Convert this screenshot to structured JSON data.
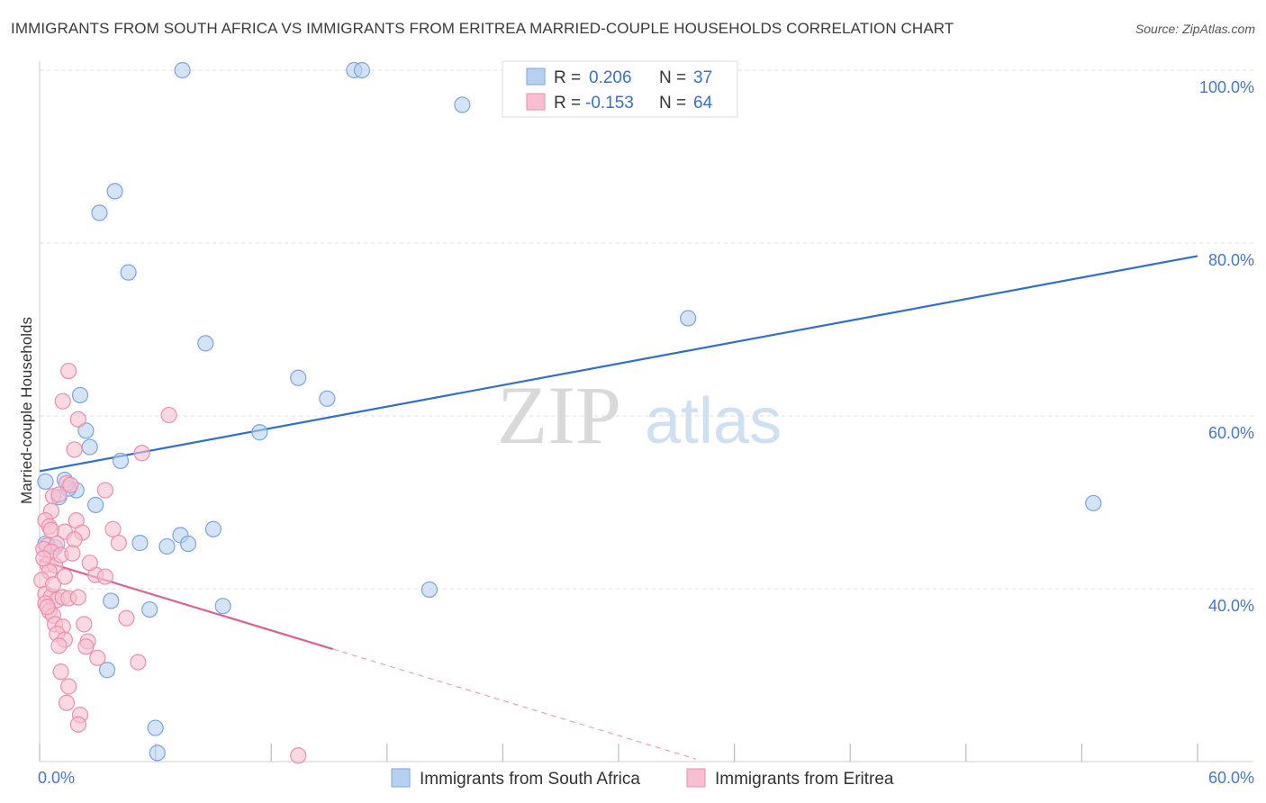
{
  "title": "IMMIGRANTS FROM SOUTH AFRICA VS IMMIGRANTS FROM ERITREA MARRIED-COUPLE HOUSEHOLDS CORRELATION CHART",
  "source": "Source: ZipAtlas.com",
  "watermark": {
    "zip": "ZIP",
    "atlas": "atlas"
  },
  "colors": {
    "blue_fill": "#b7d0f0",
    "blue_stroke": "#7aa5dc",
    "blue_line": "#2f6fce",
    "pink_fill": "#f7bfd1",
    "pink_stroke": "#ea8fae",
    "pink_line": "#e0608d",
    "tick_text": "#4477cc",
    "grid": "#dddddd"
  },
  "legend": {
    "r_label": "R =",
    "n_label": "N =",
    "series": [
      {
        "r": "0.206",
        "n": "37"
      },
      {
        "r": "-0.153",
        "n": "64"
      }
    ]
  },
  "chart_data": {
    "type": "scatter",
    "xlabel": "",
    "ylabel": "Married-couple Households",
    "xlim": [
      0,
      60
    ],
    "ylim": [
      20,
      100
    ],
    "x_tick_labels": [
      "0.0%",
      "60.0%"
    ],
    "y_ticks": [
      40,
      60,
      80,
      100
    ],
    "y_tick_labels": [
      "40.0%",
      "60.0%",
      "80.0%",
      "100.0%"
    ],
    "grid": true,
    "legend_position": "top-center",
    "series": [
      {
        "name": "Immigrants from South Africa",
        "color_key": "blue",
        "trend": {
          "x0": 0,
          "y0": 53.6,
          "x1": 60,
          "y1": 78.5,
          "solid_until": 60
        },
        "points": [
          [
            7.4,
            100
          ],
          [
            16.3,
            100
          ],
          [
            16.7,
            100
          ],
          [
            21.9,
            96
          ],
          [
            3.9,
            86
          ],
          [
            3.1,
            83.5
          ],
          [
            4.6,
            76.6
          ],
          [
            8.6,
            68.4
          ],
          [
            33.6,
            71.3
          ],
          [
            13.4,
            64.4
          ],
          [
            14.9,
            62
          ],
          [
            2.1,
            62.4
          ],
          [
            2.4,
            58.3
          ],
          [
            11.4,
            58.1
          ],
          [
            2.6,
            56.4
          ],
          [
            4.2,
            54.8
          ],
          [
            0.3,
            52.4
          ],
          [
            1.3,
            52.6
          ],
          [
            1.9,
            51.4
          ],
          [
            1.0,
            50.6
          ],
          [
            1.5,
            51.6
          ],
          [
            2.9,
            49.7
          ],
          [
            54.6,
            49.9
          ],
          [
            9.0,
            46.9
          ],
          [
            7.3,
            46.2
          ],
          [
            5.2,
            45.3
          ],
          [
            6.6,
            44.9
          ],
          [
            7.7,
            45.2
          ],
          [
            0.3,
            45.2
          ],
          [
            0.8,
            44.8
          ],
          [
            20.2,
            39.9
          ],
          [
            3.7,
            38.6
          ],
          [
            9.5,
            38.0
          ],
          [
            5.7,
            37.6
          ],
          [
            3.5,
            30.6
          ],
          [
            6.0,
            23.9
          ],
          [
            6.1,
            21.0
          ]
        ]
      },
      {
        "name": "Immigrants from Eritrea",
        "color_key": "pink",
        "trend": {
          "x0": 0,
          "y0": 43.3,
          "x1": 34,
          "y1": 20.3,
          "solid_until": 15.2
        },
        "points": [
          [
            1.5,
            65.2
          ],
          [
            1.2,
            61.7
          ],
          [
            2.0,
            59.6
          ],
          [
            6.7,
            60.1
          ],
          [
            1.8,
            56.1
          ],
          [
            5.3,
            55.7
          ],
          [
            1.4,
            52.2
          ],
          [
            1.6,
            52.0
          ],
          [
            3.4,
            51.4
          ],
          [
            0.7,
            50.7
          ],
          [
            1.0,
            50.9
          ],
          [
            0.6,
            49.0
          ],
          [
            0.3,
            47.9
          ],
          [
            0.5,
            47.2
          ],
          [
            1.9,
            47.9
          ],
          [
            3.8,
            46.9
          ],
          [
            1.3,
            46.6
          ],
          [
            2.2,
            46.5
          ],
          [
            1.8,
            45.7
          ],
          [
            4.1,
            45.3
          ],
          [
            0.4,
            45.0
          ],
          [
            0.9,
            45.2
          ],
          [
            0.2,
            44.6
          ],
          [
            0.6,
            44.3
          ],
          [
            0.4,
            42.8
          ],
          [
            0.8,
            42.7
          ],
          [
            0.5,
            42.0
          ],
          [
            1.3,
            41.4
          ],
          [
            2.9,
            41.6
          ],
          [
            3.4,
            41.4
          ],
          [
            0.1,
            41.0
          ],
          [
            0.3,
            39.4
          ],
          [
            0.6,
            39.1
          ],
          [
            0.9,
            38.7
          ],
          [
            1.2,
            39.0
          ],
          [
            1.5,
            38.9
          ],
          [
            2.0,
            39.0
          ],
          [
            0.3,
            38.3
          ],
          [
            0.5,
            37.4
          ],
          [
            0.7,
            36.9
          ],
          [
            4.5,
            36.6
          ],
          [
            0.8,
            35.9
          ],
          [
            1.2,
            35.6
          ],
          [
            2.3,
            35.9
          ],
          [
            0.9,
            34.8
          ],
          [
            1.3,
            34.1
          ],
          [
            2.5,
            33.9
          ],
          [
            1.0,
            33.4
          ],
          [
            2.4,
            33.3
          ],
          [
            3.0,
            32.0
          ],
          [
            5.1,
            31.5
          ],
          [
            1.1,
            30.4
          ],
          [
            1.5,
            28.7
          ],
          [
            1.4,
            26.8
          ],
          [
            2.1,
            25.4
          ],
          [
            2.0,
            24.3
          ],
          [
            13.4,
            20.7
          ],
          [
            0.2,
            43.5
          ],
          [
            0.6,
            46.8
          ],
          [
            1.1,
            43.9
          ],
          [
            0.7,
            40.5
          ],
          [
            1.7,
            44.1
          ],
          [
            2.6,
            43.0
          ],
          [
            0.4,
            37.9
          ]
        ]
      }
    ]
  },
  "bottom_legend": [
    {
      "label": "Immigrants from South Africa",
      "color_key": "blue"
    },
    {
      "label": "Immigrants from Eritrea",
      "color_key": "pink"
    }
  ]
}
